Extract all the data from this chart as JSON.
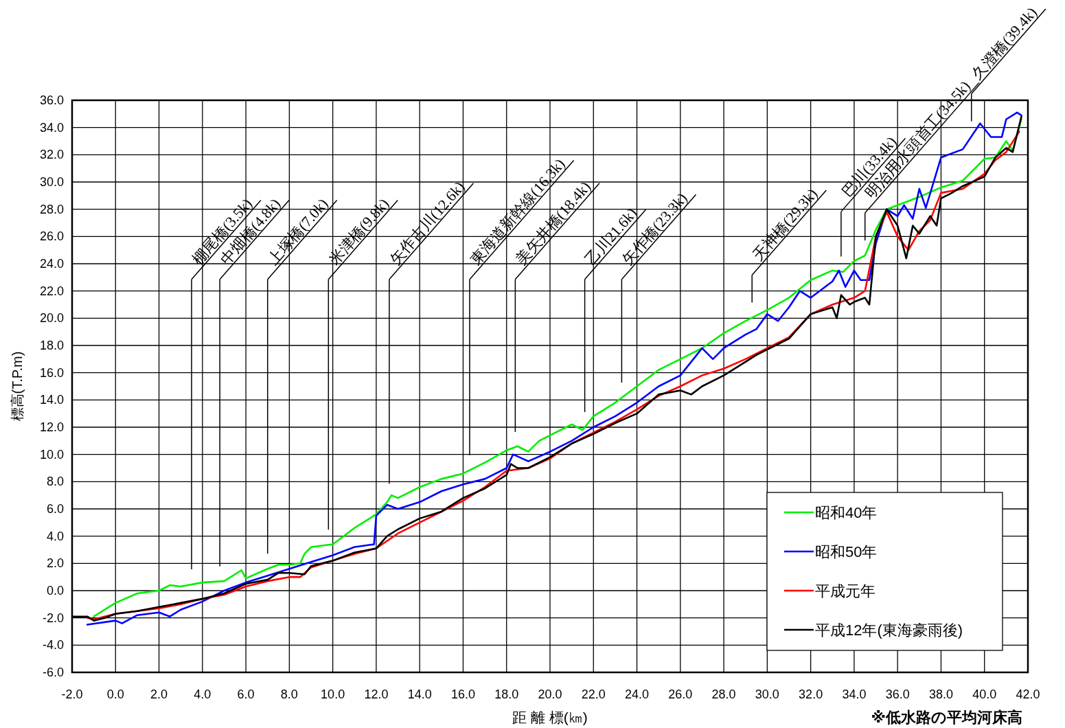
{
  "chart_data": {
    "type": "line",
    "xlabel": "距 離 標(㎞)",
    "ylabel": "標高(T.P.m)",
    "xlim": [
      -2,
      42
    ],
    "ylim": [
      -6,
      36
    ],
    "xticks": [
      {
        "value": -2,
        "label": "-2.0"
      },
      {
        "value": 0,
        "label": "0.0"
      },
      {
        "value": 2,
        "label": "2.0"
      },
      {
        "value": 4,
        "label": "4.0"
      },
      {
        "value": 6,
        "label": "6.0"
      },
      {
        "value": 8,
        "label": "8.0"
      },
      {
        "value": 10,
        "label": "10.0"
      },
      {
        "value": 12,
        "label": "12.0"
      },
      {
        "value": 14,
        "label": "14.0"
      },
      {
        "value": 16,
        "label": "16.0"
      },
      {
        "value": 18,
        "label": "18.0"
      },
      {
        "value": 20,
        "label": "20.0"
      },
      {
        "value": 22,
        "label": "22.0"
      },
      {
        "value": 24,
        "label": "24.0"
      },
      {
        "value": 26,
        "label": "26.0"
      },
      {
        "value": 28,
        "label": "28.0"
      },
      {
        "value": 30,
        "label": "30.0"
      },
      {
        "value": 32,
        "label": "32.0"
      },
      {
        "value": 34,
        "label": "34.0"
      },
      {
        "value": 36,
        "label": "36.0"
      },
      {
        "value": 38,
        "label": "38.0"
      },
      {
        "value": 40,
        "label": "40.0"
      },
      {
        "value": 42,
        "label": "42.0"
      }
    ],
    "yticks": [
      {
        "value": -6,
        "label": "-6.0"
      },
      {
        "value": -4,
        "label": "-4.0"
      },
      {
        "value": -2,
        "label": "-2.0"
      },
      {
        "value": 0,
        "label": "0.0"
      },
      {
        "value": 2,
        "label": "2.0"
      },
      {
        "value": 4,
        "label": "4.0"
      },
      {
        "value": 6,
        "label": "6.0"
      },
      {
        "value": 8,
        "label": "8.0"
      },
      {
        "value": 10,
        "label": "10.0"
      },
      {
        "value": 12,
        "label": "12.0"
      },
      {
        "value": 14,
        "label": "14.0"
      },
      {
        "value": 16,
        "label": "16.0"
      },
      {
        "value": 18,
        "label": "18.0"
      },
      {
        "value": 20,
        "label": "20.0"
      },
      {
        "value": 22,
        "label": "22.0"
      },
      {
        "value": 24,
        "label": "24.0"
      },
      {
        "value": 26,
        "label": "26.0"
      },
      {
        "value": 28,
        "label": "28.0"
      },
      {
        "value": 30,
        "label": "30.0"
      },
      {
        "value": 32,
        "label": "32.0"
      },
      {
        "value": 34,
        "label": "34.0"
      },
      {
        "value": 36,
        "label": "36.0"
      }
    ],
    "grid": true,
    "legend": "bottom right",
    "line_style": "solid",
    "series": [
      {
        "name": "昭和40年",
        "color": "#00ee00",
        "x": [
          -1.0,
          0,
          1,
          2,
          2.5,
          3,
          4,
          5,
          5.8,
          6,
          7,
          7.5,
          8,
          8.5,
          8.7,
          9,
          10,
          10.5,
          11,
          12,
          12.5,
          12.7,
          13,
          14,
          15,
          16,
          17,
          18,
          18.5,
          19,
          19.5,
          20,
          21,
          21.5,
          22,
          23,
          24,
          25,
          26,
          27,
          28,
          29,
          30,
          31,
          32,
          33,
          33.5,
          34,
          34.5,
          35,
          35.5,
          36,
          37,
          38,
          39,
          40,
          40.5,
          41,
          41.3,
          41.7
        ],
        "values": [
          -1.9,
          -0.9,
          -0.2,
          0.0,
          0.4,
          0.3,
          0.6,
          0.7,
          1.5,
          0.9,
          1.6,
          1.9,
          1.9,
          2.0,
          2.7,
          3.2,
          3.4,
          4.0,
          4.6,
          5.6,
          6.5,
          7.0,
          6.8,
          7.6,
          8.2,
          8.6,
          9.4,
          10.3,
          10.6,
          10.2,
          11.0,
          11.4,
          12.2,
          11.8,
          12.8,
          13.8,
          15.0,
          16.2,
          17.0,
          17.8,
          18.9,
          19.8,
          20.6,
          21.5,
          22.8,
          23.5,
          23.4,
          24.2,
          24.6,
          26.5,
          28.0,
          28.3,
          28.9,
          29.6,
          30.1,
          31.7,
          31.8,
          33.0,
          32.3,
          34.6
        ]
      },
      {
        "name": "昭和50年",
        "color": "#0000ff",
        "x": [
          -1.3,
          0,
          0.3,
          1,
          2,
          2.5,
          3,
          4,
          5,
          6,
          7,
          8,
          9,
          10,
          11,
          11.9,
          12.0,
          12.5,
          13,
          14,
          15,
          16,
          17,
          18,
          18.3,
          19,
          20,
          21,
          22,
          23,
          24,
          25,
          26,
          27,
          27.5,
          28,
          29,
          29.5,
          30,
          30.5,
          31,
          31.5,
          32,
          33,
          33.3,
          33.6,
          34,
          34.3,
          34.7,
          35,
          35.5,
          36,
          36.3,
          36.7,
          37,
          37.3,
          38,
          39,
          39.8,
          40.3,
          40.8,
          41,
          41.5,
          41.7
        ],
        "values": [
          -2.5,
          -2.2,
          -2.4,
          -1.8,
          -1.6,
          -1.9,
          -1.4,
          -0.8,
          0.0,
          0.6,
          1.1,
          1.6,
          2.1,
          2.6,
          3.2,
          3.4,
          5.5,
          6.3,
          6.0,
          6.5,
          7.3,
          7.8,
          8.2,
          9.0,
          10.0,
          9.5,
          10.2,
          11.0,
          12.0,
          12.8,
          13.8,
          15.0,
          15.8,
          17.8,
          17.0,
          17.8,
          18.8,
          19.2,
          20.3,
          19.8,
          20.8,
          22.0,
          21.5,
          22.7,
          23.5,
          22.3,
          23.5,
          22.8,
          22.8,
          25.5,
          28.0,
          27.5,
          28.3,
          27.3,
          29.5,
          28.1,
          31.8,
          32.4,
          34.3,
          33.3,
          33.3,
          34.6,
          35.1,
          34.9
        ]
      },
      {
        "name": "平成元年",
        "color": "#ff0000",
        "x": [
          -1.3,
          -1,
          0,
          1,
          2,
          3,
          4,
          5,
          6,
          7,
          8,
          8.5,
          9,
          10,
          11,
          12,
          13,
          14,
          15,
          16,
          17,
          18,
          19,
          20,
          21,
          22,
          23,
          24,
          25,
          26,
          27,
          28,
          29,
          30,
          31,
          32,
          33,
          34,
          34.5,
          35,
          35.5,
          36,
          36.5,
          37,
          37.5,
          38,
          39,
          40,
          40.5,
          41,
          41.6
        ],
        "values": [
          -2.0,
          -2.1,
          -1.7,
          -1.5,
          -1.3,
          -1.0,
          -0.6,
          -0.3,
          0.3,
          0.7,
          1.0,
          1.0,
          1.7,
          2.2,
          2.7,
          3.1,
          4.2,
          5.0,
          5.8,
          6.6,
          7.6,
          8.8,
          9.0,
          9.7,
          10.8,
          11.6,
          12.4,
          13.3,
          14.3,
          15.0,
          15.8,
          16.3,
          17.0,
          17.8,
          18.6,
          20.3,
          21.0,
          21.5,
          22.0,
          26.0,
          27.8,
          26.0,
          25.0,
          26.4,
          27.2,
          29.2,
          29.5,
          30.6,
          31.6,
          32.2,
          33.7
        ]
      },
      {
        "name": "平成12年(東海豪雨後)",
        "color": "#000000",
        "x": [
          -2,
          -1.3,
          -1,
          -0.5,
          0,
          1,
          2,
          3,
          4,
          5,
          6,
          7,
          7.5,
          8,
          8.7,
          9,
          10,
          11,
          12,
          12.5,
          13,
          14,
          15,
          16,
          17,
          18,
          18.2,
          18.5,
          19,
          20,
          21,
          22,
          23,
          24,
          25,
          26,
          26.5,
          27,
          28,
          29,
          29.5,
          30,
          31,
          32,
          33,
          33.2,
          33.4,
          33.8,
          34,
          34.5,
          34.7,
          35,
          35.5,
          36,
          36.4,
          36.7,
          37,
          37.5,
          37.8,
          38,
          38.5,
          39,
          40,
          40.5,
          41,
          41.3,
          41.7
        ],
        "values": [
          -1.9,
          -1.9,
          -2.2,
          -2.0,
          -1.7,
          -1.5,
          -1.2,
          -0.9,
          -0.6,
          -0.2,
          0.5,
          0.8,
          1.3,
          1.3,
          1.2,
          1.8,
          2.2,
          2.8,
          3.1,
          4.0,
          4.5,
          5.3,
          5.8,
          6.8,
          7.5,
          8.5,
          9.3,
          9.0,
          9.0,
          9.8,
          10.8,
          11.5,
          12.3,
          13.0,
          14.4,
          14.7,
          14.4,
          15.0,
          15.8,
          16.8,
          17.3,
          17.7,
          18.5,
          20.3,
          20.8,
          20.0,
          21.7,
          21.0,
          21.2,
          21.5,
          21.0,
          26.0,
          28.0,
          26.8,
          24.4,
          26.8,
          26.2,
          27.5,
          26.8,
          28.8,
          29.2,
          29.7,
          30.4,
          31.8,
          32.5,
          32.2,
          34.8
        ]
      }
    ],
    "ref_lines": [
      {
        "axis": "x",
        "value": 3.5,
        "label": "棚尾橋(3.5k)"
      },
      {
        "axis": "x",
        "value": 4.8,
        "label": "中畑橋(4.8k)"
      },
      {
        "axis": "x",
        "value": 7.0,
        "label": "上塚橋(7.0k)"
      },
      {
        "axis": "x",
        "value": 9.8,
        "label": "米津橋(9.8k)"
      },
      {
        "axis": "x",
        "value": 12.6,
        "label": "矢作古川(12.6k)"
      },
      {
        "axis": "x",
        "value": 16.3,
        "label": "東海道新幹線(16.3k)"
      },
      {
        "axis": "x",
        "value": 18.4,
        "label": "美矢井橋(18.4k)"
      },
      {
        "axis": "x",
        "value": 21.6,
        "label": "乙川21.6k)"
      },
      {
        "axis": "x",
        "value": 23.3,
        "label": "矢作橋(23.3k)"
      },
      {
        "axis": "x",
        "value": 29.3,
        "label": "天神橋(29.3k)"
      },
      {
        "axis": "x",
        "value": 33.4,
        "label": "巴川(33.4k)"
      },
      {
        "axis": "x",
        "value": 34.5,
        "label": "明治用水頭首工(34.5k)"
      },
      {
        "axis": "x",
        "value": 39.4,
        "label": "久澄橋(39.4k)"
      }
    ],
    "annotations": [
      "※低水路の平均河床高"
    ]
  }
}
